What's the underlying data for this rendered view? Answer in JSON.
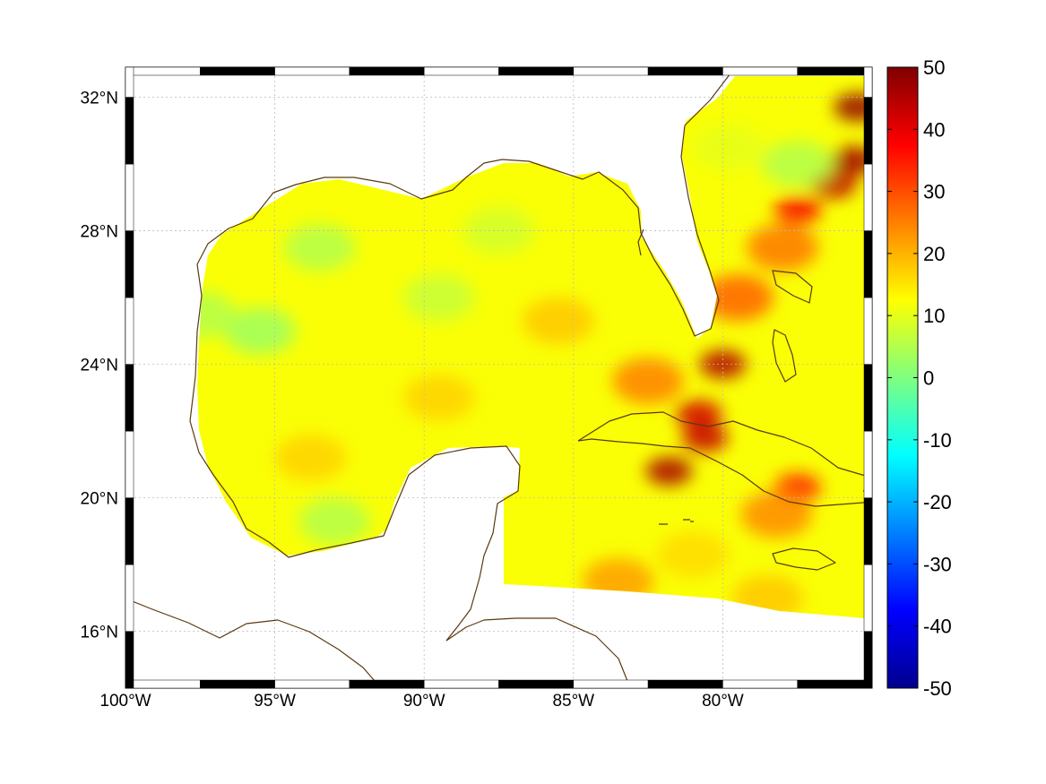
{
  "figure": {
    "lon_range": [
      -100,
      -75
    ],
    "lat_range": [
      14.3,
      32.9
    ],
    "x_ticks": [
      {
        "lon": -100,
        "label": "100°W"
      },
      {
        "lon": -95,
        "label": "95°W"
      },
      {
        "lon": -90,
        "label": "90°W"
      },
      {
        "lon": -85,
        "label": "85°W"
      },
      {
        "lon": -80,
        "label": "80°W"
      }
    ],
    "y_ticks": [
      {
        "lat": 32,
        "label": "32°N"
      },
      {
        "lat": 28,
        "label": "28°N"
      },
      {
        "lat": 24,
        "label": "24°N"
      },
      {
        "lat": 20,
        "label": "20°N"
      },
      {
        "lat": 16,
        "label": "16°N"
      }
    ],
    "grid": true,
    "coastline_color": "#5a3a10",
    "colormap": "jet"
  },
  "colorbar": {
    "range": [
      -50,
      50
    ],
    "ticks": [
      {
        "value": 50,
        "label": "50"
      },
      {
        "value": 40,
        "label": "40"
      },
      {
        "value": 30,
        "label": "30"
      },
      {
        "value": 20,
        "label": "20"
      },
      {
        "value": 10,
        "label": "10"
      },
      {
        "value": 0,
        "label": "0"
      },
      {
        "value": -10,
        "label": "-10"
      },
      {
        "value": -20,
        "label": "-20"
      },
      {
        "value": -30,
        "label": "-30"
      },
      {
        "value": -40,
        "label": "-40"
      },
      {
        "value": -50,
        "label": "-50"
      }
    ]
  },
  "field": {
    "background_value": 12,
    "features": [
      {
        "lon": -95.5,
        "lat": 25.0,
        "value": 3
      },
      {
        "lon": -93.5,
        "lat": 27.5,
        "value": 5
      },
      {
        "lon": -97.5,
        "lat": 25.5,
        "value": 5
      },
      {
        "lon": -89.5,
        "lat": 26.0,
        "value": 7
      },
      {
        "lon": -87.5,
        "lat": 28.0,
        "value": 8
      },
      {
        "lon": -93.0,
        "lat": 19.3,
        "value": 5
      },
      {
        "lon": -93.8,
        "lat": 21.2,
        "value": 17
      },
      {
        "lon": -89.5,
        "lat": 23.0,
        "value": 17
      },
      {
        "lon": -85.5,
        "lat": 25.3,
        "value": 18
      },
      {
        "lon": -82.5,
        "lat": 23.5,
        "value": 25
      },
      {
        "lon": -80.0,
        "lat": 24.0,
        "value": 45
      },
      {
        "lon": -80.8,
        "lat": 22.5,
        "value": 42
      },
      {
        "lon": -81.8,
        "lat": 20.8,
        "value": 46
      },
      {
        "lon": -80.6,
        "lat": 21.8,
        "value": 43
      },
      {
        "lon": -77.5,
        "lat": 20.3,
        "value": 35
      },
      {
        "lon": -79.5,
        "lat": 26.0,
        "value": 28
      },
      {
        "lon": -78.0,
        "lat": 27.5,
        "value": 26
      },
      {
        "lon": -77.5,
        "lat": 28.6,
        "value": 38
      },
      {
        "lon": -76.3,
        "lat": 29.4,
        "value": 44
      },
      {
        "lon": -75.6,
        "lat": 30.1,
        "value": 47
      },
      {
        "lon": -75.5,
        "lat": 31.7,
        "value": 48
      },
      {
        "lon": -77.5,
        "lat": 30.0,
        "value": 5
      },
      {
        "lon": -79.8,
        "lat": 30.5,
        "value": 10
      },
      {
        "lon": -78.2,
        "lat": 19.5,
        "value": 24
      },
      {
        "lon": -83.5,
        "lat": 17.5,
        "value": 22
      },
      {
        "lon": -81.0,
        "lat": 18.3,
        "value": 16
      },
      {
        "lon": -78.5,
        "lat": 17.0,
        "value": 18
      }
    ]
  }
}
